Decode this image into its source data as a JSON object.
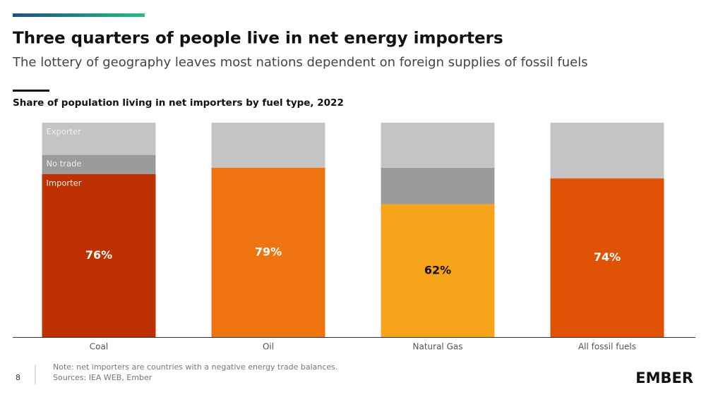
{
  "chart_data": {
    "type": "stacked-bar",
    "title": "Three quarters of people live in net energy importers",
    "subtitle": "The lottery of geography leaves most nations dependent on foreign supplies of fossil fuels",
    "chart_title": "Share of population living in net importers by fuel type, 2022",
    "categories": [
      "Coal",
      "Oil",
      "Natural Gas",
      "All fossil fuels"
    ],
    "ylim": [
      0,
      100
    ],
    "series": [
      {
        "name": "Importer",
        "colors": [
          "#bf3100",
          "#ee7511",
          "#f8a41a",
          "#e05206"
        ],
        "values": [
          76,
          79,
          62,
          74
        ],
        "value_labels": [
          "76%",
          "79%",
          "62%",
          "74%"
        ]
      },
      {
        "name": "No trade",
        "color": "#9b9b9b",
        "values": [
          9,
          0,
          17,
          0
        ]
      },
      {
        "name": "Exporter",
        "color": "#c4c4c4",
        "values": [
          15,
          21,
          21,
          26
        ]
      }
    ],
    "note": "Note: net importers are countries with a negative energy trade balances.",
    "source": "Sources: IEA WEB, Ember",
    "page_number": "8",
    "logo": "EMBER"
  }
}
